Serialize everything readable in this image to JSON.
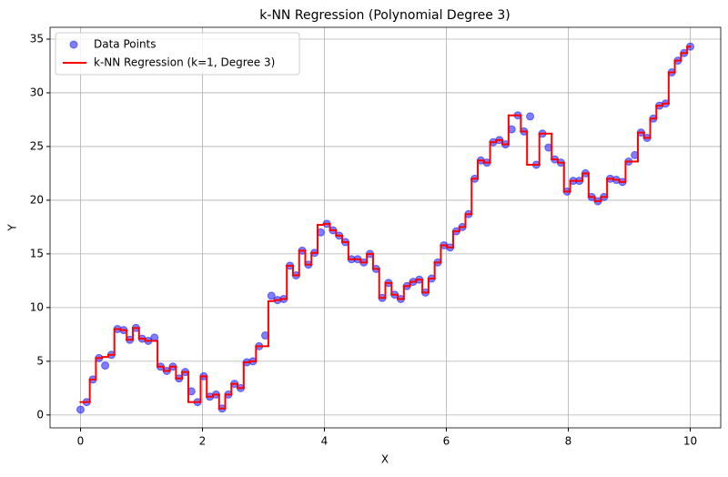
{
  "chart_data": {
    "type": "scatter",
    "title": "k-NN Regression (Polynomial Degree 3)",
    "x_label": "X",
    "y_label": "Y",
    "x": [
      0.0,
      0.101,
      0.202,
      0.303,
      0.404,
      0.505,
      0.606,
      0.707,
      0.808,
      0.909,
      1.01,
      1.111,
      1.212,
      1.313,
      1.414,
      1.515,
      1.616,
      1.717,
      1.818,
      1.919,
      2.02,
      2.121,
      2.222,
      2.323,
      2.424,
      2.525,
      2.626,
      2.727,
      2.828,
      2.929,
      3.03,
      3.131,
      3.232,
      3.333,
      3.434,
      3.535,
      3.636,
      3.737,
      3.838,
      3.939,
      4.04,
      4.141,
      4.242,
      4.343,
      4.444,
      4.545,
      4.646,
      4.747,
      4.848,
      4.949,
      5.051,
      5.152,
      5.253,
      5.354,
      5.455,
      5.556,
      5.657,
      5.758,
      5.859,
      5.96,
      6.061,
      6.162,
      6.263,
      6.364,
      6.465,
      6.566,
      6.667,
      6.768,
      6.869,
      6.97,
      7.071,
      7.172,
      7.273,
      7.374,
      7.475,
      7.576,
      7.677,
      7.778,
      7.879,
      7.98,
      8.081,
      8.182,
      8.283,
      8.384,
      8.485,
      8.586,
      8.687,
      8.788,
      8.889,
      8.99,
      9.091,
      9.192,
      9.293,
      9.394,
      9.495,
      9.596,
      9.697,
      9.798,
      9.899,
      10.0
    ],
    "series": [
      {
        "name": "Data Points",
        "type": "scatter",
        "color": "#0000ff",
        "values": [
          0.5,
          1.2,
          3.3,
          5.3,
          4.6,
          5.6,
          8.0,
          7.9,
          7.0,
          8.1,
          7.1,
          6.9,
          7.2,
          4.5,
          4.1,
          4.5,
          3.4,
          4.0,
          2.2,
          1.2,
          3.6,
          1.7,
          1.9,
          0.6,
          1.9,
          2.9,
          2.5,
          4.9,
          5.0,
          6.4,
          7.4,
          11.1,
          10.7,
          10.8,
          13.9,
          13.0,
          15.3,
          14.0,
          15.1,
          17.0,
          17.8,
          17.2,
          16.7,
          16.1,
          14.5,
          14.5,
          14.2,
          15.0,
          13.6,
          10.9,
          12.3,
          11.2,
          10.8,
          12.0,
          12.4,
          12.6,
          11.4,
          12.7,
          14.2,
          15.8,
          15.6,
          17.1,
          17.5,
          18.7,
          22.0,
          23.7,
          23.5,
          25.4,
          25.6,
          25.2,
          26.6,
          27.9,
          26.4,
          27.8,
          23.3,
          26.2,
          24.9,
          23.8,
          23.5,
          20.8,
          21.8,
          21.8,
          22.5,
          20.3,
          19.9,
          20.3,
          22.0,
          21.9,
          21.7,
          23.6,
          24.2,
          26.3,
          25.8,
          27.6,
          28.8,
          29.0,
          31.9,
          33.0,
          33.7,
          34.3
        ]
      },
      {
        "name": "k-NN Regression (k=1, Degree 3)",
        "type": "step",
        "color": "#ff0000",
        "values": [
          1.2,
          1.2,
          3.3,
          5.3,
          5.4,
          5.6,
          8.0,
          7.9,
          7.0,
          8.1,
          7.1,
          6.9,
          6.9,
          4.5,
          4.1,
          4.5,
          3.4,
          4.0,
          1.2,
          1.2,
          3.6,
          1.7,
          1.9,
          0.6,
          1.9,
          2.9,
          2.5,
          4.9,
          5.0,
          6.4,
          6.4,
          10.6,
          10.7,
          10.8,
          13.9,
          13.0,
          15.3,
          14.0,
          15.1,
          17.7,
          17.8,
          17.2,
          16.7,
          16.1,
          14.5,
          14.5,
          14.2,
          15.0,
          13.6,
          10.9,
          12.3,
          11.2,
          10.8,
          12.0,
          12.4,
          12.6,
          11.4,
          12.7,
          14.2,
          15.8,
          15.6,
          17.1,
          17.5,
          18.7,
          22.0,
          23.7,
          23.5,
          25.4,
          25.6,
          25.2,
          27.9,
          27.9,
          26.4,
          23.3,
          23.3,
          26.2,
          26.2,
          23.8,
          23.5,
          20.8,
          21.8,
          21.8,
          22.5,
          20.3,
          19.9,
          20.3,
          22.0,
          21.9,
          21.7,
          23.6,
          23.6,
          26.3,
          25.8,
          27.6,
          28.8,
          29.0,
          31.9,
          33.0,
          33.7,
          34.3
        ]
      }
    ],
    "xlim": [
      -0.5,
      10.5
    ],
    "ylim": [
      -1.2,
      36.1
    ],
    "xticks": [
      0,
      2,
      4,
      6,
      8,
      10
    ],
    "yticks": [
      0,
      5,
      10,
      15,
      20,
      25,
      30,
      35
    ],
    "grid": true,
    "legend": "upper-left"
  }
}
